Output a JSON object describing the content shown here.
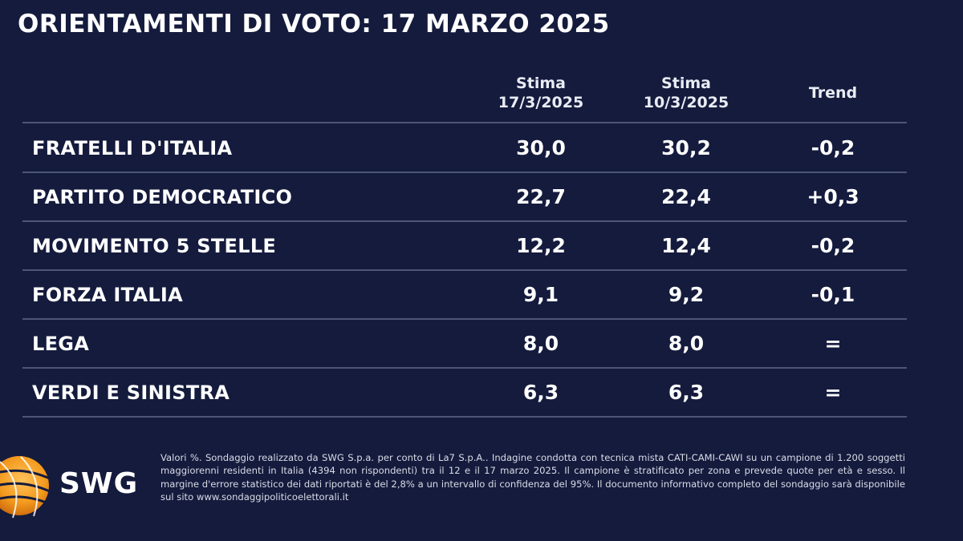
{
  "title": "ORIENTAMENTI DI VOTO: 17 MARZO 2025",
  "columns": {
    "current": {
      "line1": "Stima",
      "line2": "17/3/2025"
    },
    "previous": {
      "line1": "Stima",
      "line2": "10/3/2025"
    },
    "trend": "Trend"
  },
  "rows": [
    {
      "party": "FRATELLI D'ITALIA",
      "current": "30,0",
      "previous": "30,2",
      "trend": "-0,2"
    },
    {
      "party": "PARTITO DEMOCRATICO",
      "current": "22,7",
      "previous": "22,4",
      "trend": "+0,3"
    },
    {
      "party": "MOVIMENTO 5 STELLE",
      "current": "12,2",
      "previous": "12,4",
      "trend": "-0,2"
    },
    {
      "party": "FORZA ITALIA",
      "current": "9,1",
      "previous": "9,2",
      "trend": "-0,1"
    },
    {
      "party": "LEGA",
      "current": "8,0",
      "previous": "8,0",
      "trend": "="
    },
    {
      "party": "VERDI E SINISTRA",
      "current": "6,3",
      "previous": "6,3",
      "trend": "="
    }
  ],
  "footnote": "Valori %. Sondaggio realizzato da SWG S.p.a. per conto di La7 S.p.A.. Indagine condotta con tecnica mista CATI-CAMI-CAWI su un campione di 1.200 soggetti maggiorenni residenti in Italia (4394 non rispondenti) tra il 12 e il 17 marzo 2025. Il campione è stratificato per zona e prevede quote per età e sesso. Il margine d'errore statistico dei dati riportati è del 2,8% a un intervallo di confidenza del 95%. Il documento informativo completo del sondaggio sarà disponibile sul sito www.sondaggipoliticoelettorali.it",
  "logo_text": "SWG",
  "colors": {
    "background": "#141b3d",
    "text": "#ffffff",
    "rule": "#4d5578",
    "logo_orange": "#f39a1e"
  }
}
